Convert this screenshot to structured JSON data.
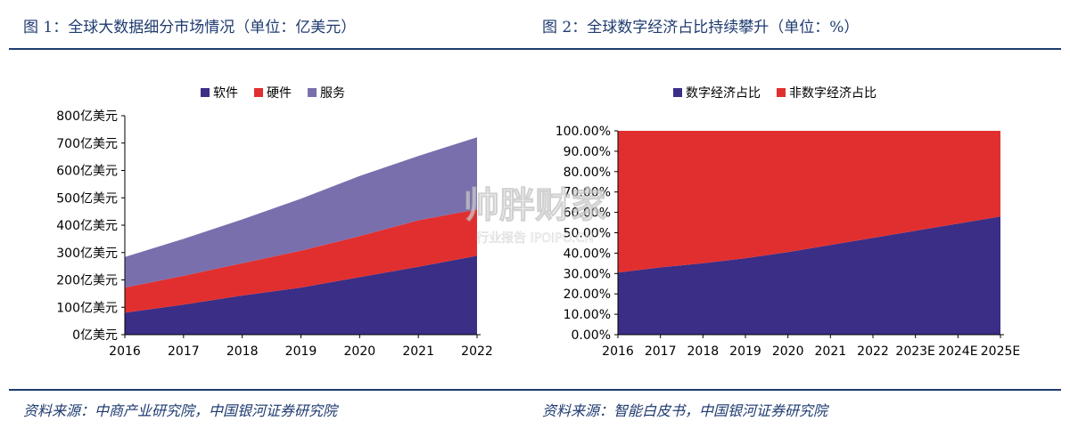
{
  "titles": {
    "left": "图 1：全球大数据细分市场情况（单位：亿美元）",
    "right": "图 2：全球数字经济占比持续攀升（单位：%）"
  },
  "sources": {
    "left": "资料来源：中商产业研究院，中国银河证券研究院",
    "right": "资料来源：智能白皮书，中国银河证券研究院"
  },
  "watermark": {
    "brand": "帅胖财家",
    "sub": "行业报告 IPOIPO.CN"
  },
  "chart_data": [
    {
      "type": "area",
      "stacked": true,
      "x": [
        "2016",
        "2017",
        "2018",
        "2019",
        "2020",
        "2021",
        "2022"
      ],
      "series": [
        {
          "name": "软件",
          "color": "#3a2e86",
          "values": [
            80,
            110,
            143,
            172,
            210,
            248,
            288
          ]
        },
        {
          "name": "硬件",
          "color": "#e12f2f",
          "values": [
            92,
            105,
            118,
            135,
            150,
            170,
            170
          ]
        },
        {
          "name": "服务",
          "color": "#7a6fad",
          "values": [
            112,
            135,
            160,
            190,
            220,
            235,
            263
          ]
        }
      ],
      "ylim": [
        0,
        800
      ],
      "yticks": [
        "0亿美元",
        "100亿美元",
        "200亿美元",
        "300亿美元",
        "400亿美元",
        "500亿美元",
        "600亿美元",
        "700亿美元",
        "800亿美元"
      ],
      "legend_position": "top-center",
      "grid": false
    },
    {
      "type": "area",
      "stacked": true,
      "x": [
        "2016",
        "2017",
        "2018",
        "2019",
        "2020",
        "2021",
        "2022",
        "2023E",
        "2024E",
        "2025E"
      ],
      "series": [
        {
          "name": "数字经济占比",
          "color": "#3a2e86",
          "values": [
            30.5,
            33.0,
            35.0,
            37.5,
            40.5,
            44.0,
            47.5,
            51.0,
            54.5,
            58.0
          ]
        },
        {
          "name": "非数字经济占比",
          "color": "#e12f2f",
          "values": [
            69.5,
            67.0,
            65.0,
            62.5,
            59.5,
            56.0,
            52.5,
            49.0,
            45.5,
            42.0
          ]
        }
      ],
      "ylim": [
        0,
        100
      ],
      "yticks": [
        "0.00%",
        "10.00%",
        "20.00%",
        "30.00%",
        "40.00%",
        "50.00%",
        "60.00%",
        "70.00%",
        "80.00%",
        "90.00%",
        "100.00%"
      ],
      "legend_position": "top-center",
      "grid": false
    }
  ]
}
